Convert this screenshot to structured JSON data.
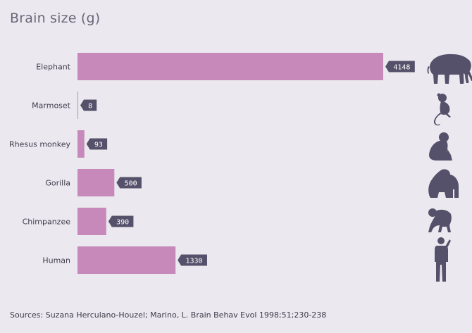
{
  "chart_data": {
    "type": "bar",
    "orientation": "horizontal",
    "title": "Brain size (g)",
    "categories": [
      "Elephant",
      "Marmoset",
      "Rhesus monkey",
      "Gorilla",
      "Chimpanzee",
      "Human"
    ],
    "values": [
      4148,
      8,
      93,
      500,
      390,
      1330
    ],
    "icons": [
      "elephant-icon",
      "marmoset-icon",
      "rhesus-monkey-icon",
      "gorilla-icon",
      "chimpanzee-icon",
      "human-icon"
    ],
    "xlim": [
      0,
      4148
    ],
    "grid": false,
    "legend": "none",
    "source": "Sources: Suzana Herculano-Houzel; Marino, L. Brain Behav Evol 1998;51;230-238"
  },
  "colors": {
    "background": "#ebe9ef",
    "bar": "#c689b9",
    "label_bg": "#55516a",
    "icon": "#55516a",
    "text": "#3f3a4b",
    "title": "#6b6679"
  }
}
